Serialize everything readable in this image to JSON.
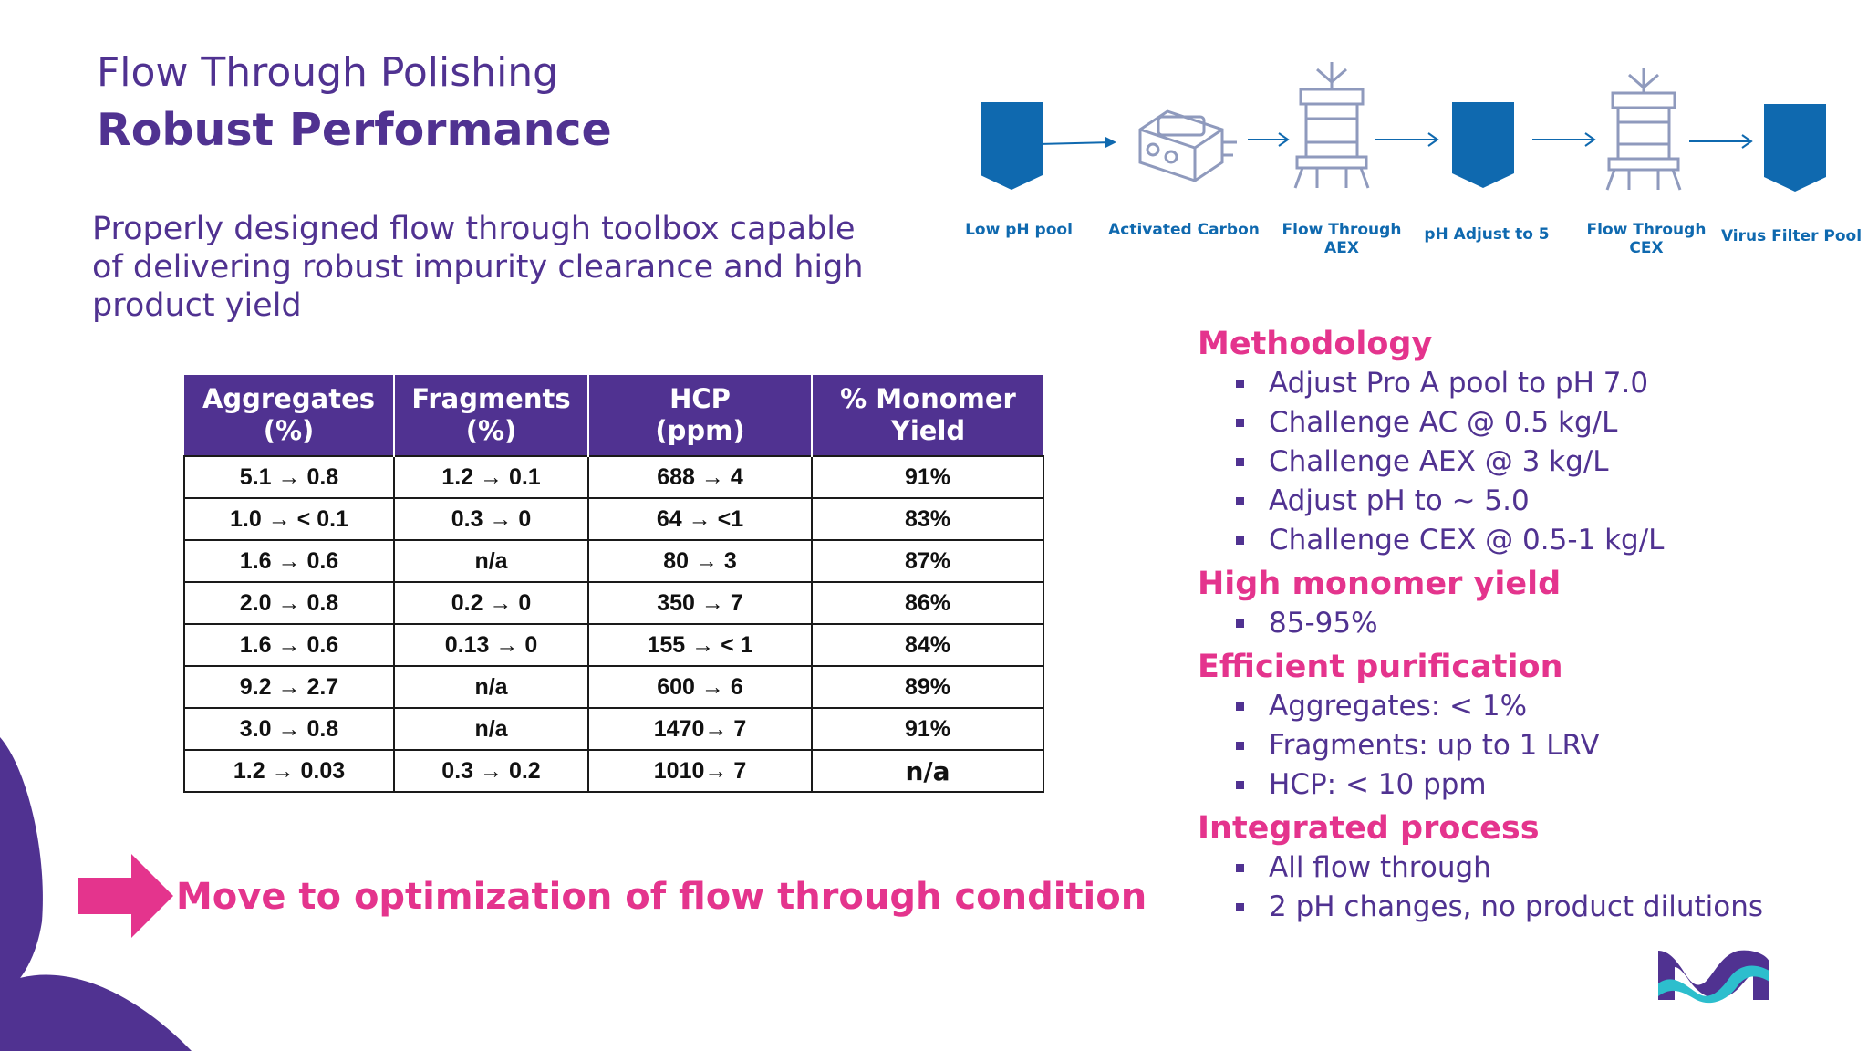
{
  "header": {
    "title": "Flow Through Polishing",
    "subtitle": "Robust Performance"
  },
  "intro": "Properly designed flow through toolbox capable of delivering robust impurity clearance and high product yield",
  "process": {
    "steps": [
      {
        "icon": "pool-icon",
        "label": "Low pH pool"
      },
      {
        "icon": "activated-carbon-icon",
        "label": "Activated Carbon"
      },
      {
        "icon": "column-icon",
        "label": "Flow Through\nAEX"
      },
      {
        "icon": "pool-icon",
        "label": "pH Adjust to 5"
      },
      {
        "icon": "column-icon",
        "label": "Flow Through\nCEX"
      },
      {
        "icon": "pool-icon",
        "label": "Virus Filter Pool"
      }
    ],
    "colors": {
      "icon": "#0f69af",
      "arrow": "#0f69af",
      "equipment": "#9aa6c8"
    }
  },
  "table": {
    "headers": [
      "Aggregates\n(%)",
      "Fragments\n(%)",
      "HCP\n(ppm)",
      "% Monomer\nYield"
    ],
    "rows": [
      [
        "5.1 → 0.8",
        "1.2 → 0.1",
        "688 → 4",
        "91%"
      ],
      [
        "1.0 → < 0.1",
        "0.3 → 0",
        "64 → <1",
        "83%"
      ],
      [
        "1.6 → 0.6",
        "n/a",
        "80 → 3",
        "87%"
      ],
      [
        "2.0 → 0.8",
        "0.2 → 0",
        "350 → 7",
        "86%"
      ],
      [
        "1.6 → 0.6",
        "0.13 → 0",
        "155 → < 1",
        "84%"
      ],
      [
        "9.2 → 2.7",
        "n/a",
        "600 → 6",
        "89%"
      ],
      [
        "3.0 → 0.8",
        "n/a",
        "1470→ 7",
        "91%"
      ],
      [
        "1.2 → 0.03",
        "0.3 → 0.2",
        "1010→ 7",
        "n/a"
      ]
    ]
  },
  "callout": {
    "text": "Move to optimization of flow through condition",
    "icon": "right-arrow-icon"
  },
  "sections": [
    {
      "heading": "Methodology",
      "items": [
        "Adjust Pro A pool to pH 7.0",
        "Challenge AC @ 0.5 kg/L",
        "Challenge AEX @ 3 kg/L",
        "Adjust pH to ~ 5.0",
        "Challenge CEX @ 0.5-1 kg/L"
      ]
    },
    {
      "heading": "High monomer yield",
      "items": [
        "85-95%"
      ]
    },
    {
      "heading": "Efficient purification",
      "items": [
        "Aggregates: < 1%",
        "Fragments:  up to 1 LRV",
        "HCP: < 10 ppm"
      ]
    },
    {
      "heading": "Integrated process",
      "items": [
        "All flow through",
        "2 pH changes, no product dilutions"
      ]
    }
  ],
  "colors": {
    "purple": "#503291",
    "pink": "#e4348d",
    "blue": "#0f69af",
    "teal": "#2dbecd"
  }
}
